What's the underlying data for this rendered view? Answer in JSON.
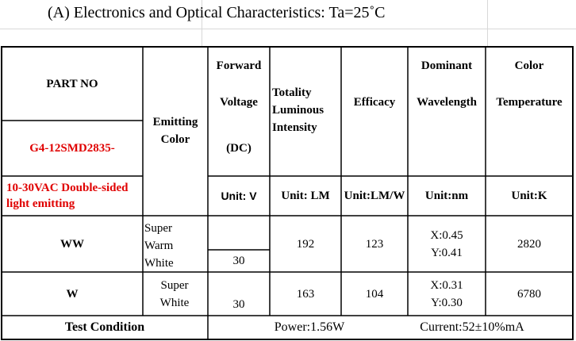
{
  "title": "(A) Electronics and Optical Characteristics: Ta=25˚C",
  "table": {
    "header": {
      "part_no": "PART NO",
      "model": "G4-12SMD2835-",
      "model_desc": "10-30VAC Double-sided light emitting",
      "emitting_color": "Emitting Color",
      "forward": "Forward",
      "voltage": "Voltage",
      "dc": "(DC)",
      "voltage_unit": "Unit: V",
      "luminous": "Totality Luminous Intensity",
      "luminous_unit": "Unit: LM",
      "efficacy": "Efficacy",
      "efficacy_unit": "Unit:LM/W",
      "dominant": "Dominant",
      "wavelength": "Wavelength",
      "wavelength_unit": "Unit:nm",
      "color": "Color",
      "temperature": "Temperature",
      "temperature_unit": "Unit:K"
    },
    "rows": [
      {
        "part": "WW",
        "color": "Super Warm White",
        "voltage": 30,
        "luminous": 192,
        "efficacy": 123,
        "x": "X:0.45",
        "y": "Y:0.41",
        "cct": 2820
      },
      {
        "part": "W",
        "color": "Super White",
        "voltage": 30,
        "luminous": 163,
        "efficacy": 104,
        "x": "X:0.31",
        "y": "Y:0.30",
        "cct": 6780
      }
    ],
    "footer": {
      "label": "Test Condition",
      "power": "Power:1.56W",
      "current": "Current:52±10%mA"
    }
  }
}
